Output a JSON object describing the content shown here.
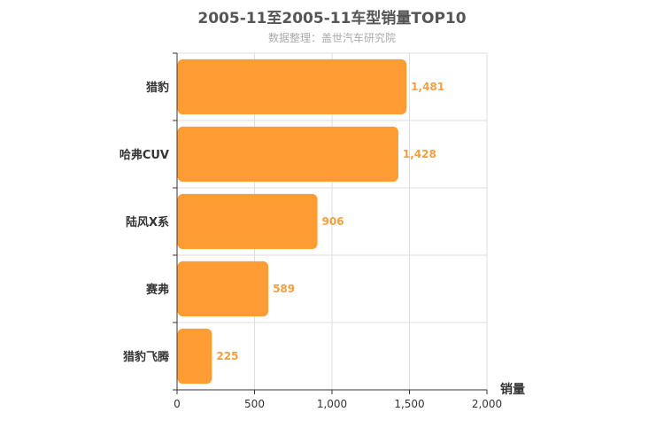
{
  "chart_data": {
    "type": "bar",
    "orientation": "horizontal",
    "title": "2005-11至2005-11车型销量TOP10",
    "subtitle": "数据整理：盖世汽车研究院",
    "categories": [
      "猎豹",
      "哈弗CUV",
      "陆风X系",
      "赛弗",
      "猎豹飞腾"
    ],
    "values": [
      1481,
      1428,
      906,
      589,
      225
    ],
    "value_labels": [
      "1,481",
      "1,428",
      "906",
      "589",
      "225"
    ],
    "xlabel": "销量",
    "ylabel": "",
    "xlim": [
      0,
      2000
    ],
    "xticks": [
      0,
      500,
      1000,
      1500,
      2000
    ],
    "xtick_labels": [
      "0",
      "500",
      "1,000",
      "1,500",
      "2,000"
    ],
    "grid": true,
    "bar_color": "#ff9c33",
    "label_color": "#f0a040"
  }
}
